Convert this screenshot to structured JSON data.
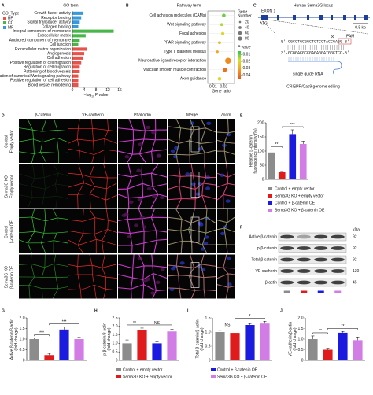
{
  "panel_labels": [
    "A",
    "B",
    "C",
    "D",
    "E",
    "F",
    "G",
    "H",
    "I",
    "J"
  ],
  "groups": [
    {
      "name": "Control + empty vector",
      "color": "#8c8c8c"
    },
    {
      "name": "Sema3G KO + empty vector",
      "color": "#e01b1b"
    },
    {
      "name": "Control + β-catenin OE",
      "color": "#1b1be0"
    },
    {
      "name": "Sema3G KO + β-catenin OE",
      "color": "#d27ce6"
    }
  ],
  "A": {
    "title": "GO term",
    "legend_title": "GO_Type",
    "legend": [
      {
        "name": "BP",
        "color": "#e5534b"
      },
      {
        "name": "CC",
        "color": "#49b649"
      },
      {
        "name": "MF",
        "color": "#3a9ad9"
      }
    ],
    "categories": [
      "Growth factor activity",
      "Receptor binding",
      "Signal transducer activity",
      "Collagen binding",
      "Integral component of membrane",
      "Extracellular matrix",
      "Anchored component of membrane",
      "Cell junction",
      "Extracellular matrix organization",
      "Angiogenesis",
      "Cell adhesion",
      "Positive regulation of cell migration",
      "Regulation of cell migration",
      "Patterning of blood vessels",
      "Regulation of canonical Wnt signaling pathway",
      "Positive regulation of cell adhesion",
      "Blood vessel remodeling"
    ],
    "values": [
      3.5,
      3,
      2.5,
      2,
      14,
      4.5,
      2.5,
      2,
      5,
      4,
      3.5,
      3,
      2.5,
      2.5,
      2,
      2,
      2
    ],
    "colors": [
      "#3a9ad9",
      "#3a9ad9",
      "#3a9ad9",
      "#3a9ad9",
      "#49b649",
      "#49b649",
      "#49b649",
      "#49b649",
      "#e5534b",
      "#e5534b",
      "#e5534b",
      "#e5534b",
      "#e5534b",
      "#e5534b",
      "#e5534b",
      "#e5534b",
      "#e5534b"
    ],
    "xlim": [
      0,
      16
    ],
    "xticks": [
      0,
      4,
      8,
      12,
      16
    ],
    "xlabel": "−log",
    "xlabel_sub": "10",
    "xlabel_tail": "P value"
  },
  "B": {
    "title": "Pathway term",
    "categories": [
      "Cell adhesion molecules (CAMs)",
      "Wnt signaling pathway",
      "Focal adhesion",
      "PPAR signaling pathway",
      "Type II diabetes mellitus",
      "Neuroactive ligand-receptor interaction",
      "Vascular smooth muscle contraction",
      "Axon guidance"
    ],
    "x": [
      0.02,
      0.018,
      0.019,
      0.016,
      0.014,
      0.024,
      0.021,
      0.016
    ],
    "sizes": [
      30,
      20,
      25,
      20,
      15,
      80,
      40,
      30
    ],
    "pvalues": [
      0.01,
      0.015,
      0.02,
      0.025,
      0.03,
      0.035,
      0.04,
      0.02
    ],
    "xlim": [
      0.005,
      0.03
    ],
    "xticks": [
      0.01,
      0.02
    ],
    "xlabel": "Gene ratio",
    "size_title": [
      "Gene",
      "Number"
    ],
    "size_legend": [
      20,
      40,
      60,
      80
    ],
    "color_title": "P value",
    "clim": [
      0.005,
      0.045
    ],
    "cticks": [
      0.01,
      0.02,
      0.03,
      0.04
    ]
  },
  "C": {
    "title": "Human Sema3G locus",
    "exon": "EXON 1",
    "atg": "ATG",
    "scale": "0.5 kb",
    "seq_top": "5'-CGCCTGCGGCTCTCCTACCGAGG-3'",
    "seq_bottom": "3'-GCGGACGCCGAGAGGATGGCTCC-5'",
    "pam": "PAM",
    "sgrna": "single guide RNA",
    "caption": "CRISPR/Cas9 genome editing"
  },
  "D": {
    "columns": [
      {
        "name": "β-catenin",
        "color": "#3ddc3d"
      },
      {
        "name": "VE-cadherin",
        "color": "#ff3030"
      },
      {
        "name": "Phalloidin",
        "color": "#e040e0"
      },
      {
        "name": "Merge",
        "color": "#000000"
      },
      {
        "name": "Zoom",
        "color": "#000000"
      }
    ],
    "rows": [
      [
        "Control",
        "Empty vector"
      ],
      [
        "Sema3G KO",
        "Empty vector"
      ],
      [
        "Control",
        "β-catenin OE"
      ],
      [
        "Sema3G KO",
        "β-catenin OE"
      ]
    ]
  },
  "E": {
    "type": "bar",
    "ylabel_lines": [
      "Relative β-catenin",
      "fluorescence intensity (%)"
    ],
    "values": [
      95,
      25,
      160,
      125
    ],
    "errors": [
      10,
      3,
      15,
      10
    ],
    "ylim": [
      0,
      200
    ],
    "yticks": [
      0,
      50,
      100,
      150,
      200
    ],
    "significance": [
      "**",
      "***"
    ]
  },
  "F": {
    "kda": "kDa",
    "bands": [
      {
        "name": "Active β-catenin",
        "kda": 92
      },
      {
        "name": "p-β-catenin",
        "kda": 92
      },
      {
        "name": "Total β-catenin",
        "kda": 92
      },
      {
        "name": "VE-cadherin",
        "kda": 130
      },
      {
        "name": "β-actin",
        "kda": 45
      }
    ]
  },
  "G": {
    "type": "bar",
    "ylabel_lines": [
      "Active β-catenin/β-actin",
      "(fold change)"
    ],
    "values": [
      1.0,
      0.25,
      1.45,
      1.0
    ],
    "errors": [
      0.05,
      0.08,
      0.12,
      0.08
    ],
    "ylim": [
      0,
      2
    ],
    "yticks": [
      0,
      0.5,
      {
        "value": 1,
        "label": "1.0"
      },
      1.5,
      {
        "value": 2,
        "label": "2.0"
      }
    ],
    "significance": [
      "***",
      "***"
    ]
  },
  "H": {
    "type": "bar",
    "ylabel_lines": [
      "p-β-catenin/β-actin",
      "(fold change)"
    ],
    "values": [
      1.0,
      1.8,
      1.0,
      1.7
    ],
    "errors": [
      0.2,
      0.1,
      0.08,
      0.12
    ],
    "ylim": [
      0,
      2.5
    ],
    "yticks": [
      0,
      0.5,
      {
        "value": 1,
        "label": "1.0"
      },
      1.5,
      {
        "value": 2,
        "label": "2.0"
      },
      2.5
    ],
    "significance": [
      "**",
      "NS"
    ]
  },
  "I": {
    "type": "bar",
    "ylabel_lines": [
      "Total β-catenin/β-actin",
      "(fold change)"
    ],
    "values": [
      1.0,
      0.97,
      1.25,
      1.3
    ],
    "errors": [
      0.06,
      0.1,
      0.05,
      0.08
    ],
    "ylim": [
      0,
      1.5
    ],
    "yticks": [
      0,
      0.5,
      {
        "value": 1,
        "label": "1.0"
      },
      1.5
    ],
    "significance": [
      "NS",
      "*"
    ]
  },
  "J": {
    "type": "bar",
    "ylabel_lines": [
      "VE-cadherin/β-actin",
      "(fold change)"
    ],
    "values": [
      1.0,
      0.5,
      1.3,
      0.95
    ],
    "errors": [
      0.15,
      0.07,
      0.06,
      0.15
    ],
    "ylim": [
      0,
      2
    ],
    "yticks": [
      0,
      0.5,
      {
        "value": 1,
        "label": "1.0"
      },
      1.5,
      {
        "value": 2,
        "label": "2.0"
      }
    ],
    "significance": [
      "**",
      "**"
    ]
  }
}
